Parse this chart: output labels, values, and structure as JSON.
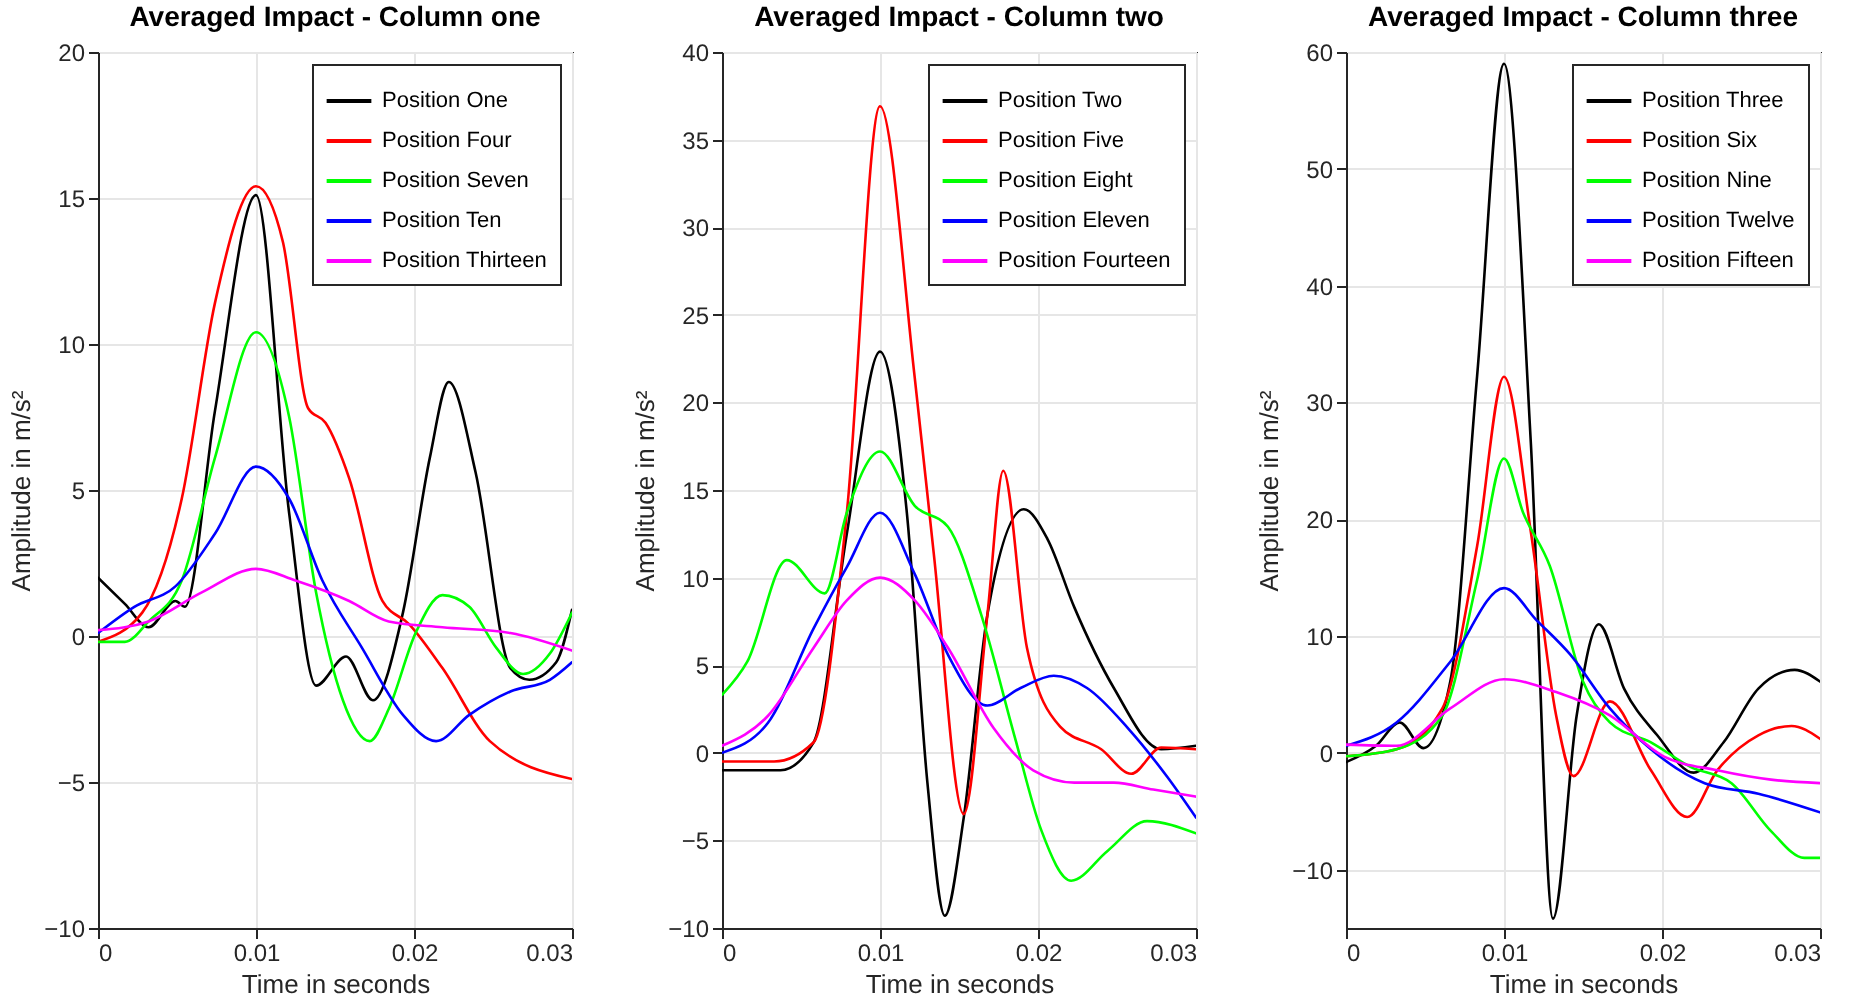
{
  "chart_data": [
    {
      "type": "line",
      "title": "Averaged Impact - Column one",
      "xlabel": "Time in seconds",
      "ylabel": "Amplitude in m/s²",
      "xlim": [
        0,
        0.03
      ],
      "xticks": [
        0,
        0.01,
        0.02,
        0.03
      ],
      "ylim": [
        -10,
        20
      ],
      "yticks": [
        -10,
        -5,
        0,
        5,
        10,
        15,
        20
      ],
      "grid": true,
      "legend": "top right",
      "line_style": "solid",
      "series": [
        {
          "name": "Position One",
          "color": "#000000",
          "x": [
            0,
            0.0017,
            0.0032,
            0.0049,
            0.0055,
            0.0074,
            0.01,
            0.0121,
            0.0138,
            0.0157,
            0.0174,
            0.0193,
            0.021,
            0.0222,
            0.0239,
            0.0261,
            0.0273,
            0.029,
            0.03
          ],
          "values": [
            2,
            1.1,
            0.3,
            1.2,
            1,
            7.7,
            15.1,
            4.2,
            -1.7,
            -0.7,
            -2.2,
            0.8,
            6.1,
            8.7,
            5.6,
            -1.1,
            -1.5,
            -0.9,
            0.9
          ]
        },
        {
          "name": "Position Four",
          "color": "#ff0000",
          "x": [
            0,
            0.0028,
            0.0053,
            0.0074,
            0.01,
            0.0117,
            0.0133,
            0.0144,
            0.0159,
            0.018,
            0.0197,
            0.0218,
            0.0248,
            0.03
          ],
          "values": [
            -0.2,
            0.8,
            4.7,
            11.4,
            15.4,
            13.5,
            7.8,
            7.3,
            5.4,
            1.2,
            0.4,
            -1.1,
            -3.6,
            -4.9
          ]
        },
        {
          "name": "Position Seven",
          "color": "#00ff00",
          "x": [
            0,
            0.0017,
            0.0032,
            0.0053,
            0.0074,
            0.01,
            0.0121,
            0.0138,
            0.0155,
            0.0172,
            0.0184,
            0.0201,
            0.0218,
            0.0235,
            0.0252,
            0.0269,
            0.0286,
            0.03
          ],
          "values": [
            -0.2,
            -0.2,
            0.5,
            1.9,
            6.1,
            10.4,
            7.5,
            1.5,
            -2.2,
            -3.6,
            -2.5,
            0.1,
            1.4,
            1,
            -0.4,
            -1.3,
            -0.6,
            0.8
          ]
        },
        {
          "name": "Position Ten",
          "color": "#0000ff",
          "x": [
            0,
            0.0023,
            0.0049,
            0.0074,
            0.01,
            0.0121,
            0.0142,
            0.0167,
            0.0193,
            0.0214,
            0.0235,
            0.0261,
            0.0286,
            0.03
          ],
          "values": [
            0.1,
            1,
            1.7,
            3.5,
            5.8,
            4.7,
            1.9,
            -0.4,
            -2.7,
            -3.6,
            -2.7,
            -1.9,
            -1.5,
            -0.9
          ]
        },
        {
          "name": "Position Thirteen",
          "color": "#ff00ff",
          "x": [
            0,
            0.0032,
            0.0066,
            0.01,
            0.0125,
            0.0159,
            0.0184,
            0.0218,
            0.0261,
            0.03
          ],
          "values": [
            0.2,
            0.5,
            1.5,
            2.3,
            1.9,
            1.2,
            0.5,
            0.3,
            0.1,
            -0.5
          ]
        }
      ]
    },
    {
      "type": "line",
      "title": "Averaged Impact - Column two",
      "xlabel": "Time in seconds",
      "ylabel": "Amplitude in m/s²",
      "xlim": [
        0,
        0.03
      ],
      "xticks": [
        0,
        0.01,
        0.02,
        0.03
      ],
      "ylim": [
        -10,
        40
      ],
      "yticks": [
        -10,
        -5,
        0,
        5,
        10,
        15,
        20,
        25,
        30,
        35,
        40
      ],
      "grid": true,
      "legend": "top right",
      "line_style": "solid",
      "series": [
        {
          "name": "Position Two",
          "color": "#000000",
          "x": [
            0,
            0.0037,
            0.0058,
            0.0079,
            0.01,
            0.0117,
            0.013,
            0.0141,
            0.0153,
            0.0168,
            0.0191,
            0.0206,
            0.0223,
            0.0248,
            0.0278,
            0.03
          ],
          "values": [
            -1,
            -1,
            0.6,
            12.5,
            22.9,
            13.7,
            -1.7,
            -9.3,
            -3.7,
            7.9,
            13.9,
            12.2,
            8.3,
            3.7,
            0.2,
            0.4
          ]
        },
        {
          "name": "Position Five",
          "color": "#ff0000",
          "x": [
            0,
            0.0033,
            0.0058,
            0.0079,
            0.01,
            0.0122,
            0.0134,
            0.0153,
            0.0168,
            0.0178,
            0.0193,
            0.0214,
            0.024,
            0.0259,
            0.0278,
            0.03
          ],
          "values": [
            -0.5,
            -0.5,
            0.6,
            13.7,
            36.9,
            21.4,
            11.4,
            -3.5,
            7.9,
            16.1,
            6,
            1.5,
            0.2,
            -1.2,
            0.3,
            0.2
          ]
        },
        {
          "name": "Position Eight",
          "color": "#00ff00",
          "x": [
            0,
            0.0016,
            0.0041,
            0.0065,
            0.0079,
            0.01,
            0.0122,
            0.0143,
            0.0164,
            0.0185,
            0.0202,
            0.0221,
            0.0244,
            0.0269,
            0.03
          ],
          "values": [
            3.3,
            5.2,
            11,
            9.1,
            13.7,
            17.2,
            14.1,
            12.9,
            7.9,
            1,
            -4.4,
            -7.3,
            -5.6,
            -3.9,
            -4.6
          ]
        },
        {
          "name": "Position Eleven",
          "color": "#0000ff",
          "x": [
            0,
            0.0029,
            0.0058,
            0.0079,
            0.01,
            0.0122,
            0.0143,
            0.0168,
            0.0189,
            0.021,
            0.0231,
            0.0257,
            0.0282,
            0.03
          ],
          "values": [
            0,
            1.7,
            7.1,
            10.6,
            13.7,
            10.2,
            5.6,
            2.7,
            3.7,
            4.4,
            3.7,
            1.4,
            -1.4,
            -3.7
          ]
        },
        {
          "name": "Position Fourteen",
          "color": "#ff00ff",
          "x": [
            0,
            0.0029,
            0.0058,
            0.0079,
            0.01,
            0.0122,
            0.0143,
            0.0172,
            0.0197,
            0.0223,
            0.0248,
            0.0273,
            0.03
          ],
          "values": [
            0.4,
            2.1,
            6,
            8.7,
            10,
            8.7,
            6,
            1.4,
            -1,
            -1.7,
            -1.7,
            -2.1,
            -2.5
          ]
        }
      ]
    },
    {
      "type": "line",
      "title": "Averaged Impact - Column three",
      "xlabel": "Time in seconds",
      "ylabel": "Amplitude in m/s²",
      "xlim": [
        0,
        0.03
      ],
      "xticks": [
        0,
        0.01,
        0.02,
        0.03
      ],
      "ylim": [
        -15,
        60
      ],
      "yticks": [
        -10,
        0,
        10,
        20,
        30,
        40,
        50,
        60
      ],
      "grid": true,
      "legend": "top right",
      "line_style": "solid",
      "series": [
        {
          "name": "Position Three",
          "color": "#000000",
          "x": [
            0,
            0.0019,
            0.0034,
            0.0049,
            0.0066,
            0.0083,
            0.01,
            0.0117,
            0.0131,
            0.0146,
            0.016,
            0.0176,
            0.0197,
            0.022,
            0.0239,
            0.0261,
            0.0284,
            0.03
          ],
          "values": [
            -0.8,
            0.6,
            2.6,
            0.4,
            6.1,
            32.3,
            59,
            26.5,
            -14.2,
            3.2,
            11,
            5.5,
            1.5,
            -1.7,
            0.9,
            5.5,
            7.1,
            6.1
          ]
        },
        {
          "name": "Position Six",
          "color": "#ff0000",
          "x": [
            0,
            0.0032,
            0.0061,
            0.0083,
            0.01,
            0.0117,
            0.0133,
            0.0144,
            0.0167,
            0.0193,
            0.0216,
            0.0235,
            0.0261,
            0.0282,
            0.03
          ],
          "values": [
            -0.3,
            0.3,
            3.8,
            17.7,
            32.2,
            18.9,
            3.2,
            -2,
            4.4,
            -1.5,
            -5.5,
            -1.5,
            1.5,
            2.3,
            1.2
          ]
        },
        {
          "name": "Position Nine",
          "color": "#00ff00",
          "x": [
            0,
            0.0032,
            0.0061,
            0.0083,
            0.01,
            0.0112,
            0.0129,
            0.015,
            0.0167,
            0.0193,
            0.0218,
            0.0244,
            0.0269,
            0.029,
            0.03
          ],
          "values": [
            -0.3,
            0.3,
            3.2,
            14.8,
            25.2,
            20.6,
            16,
            6.1,
            2.6,
            0.9,
            -1.2,
            -2.6,
            -6.7,
            -9,
            -9
          ]
        },
        {
          "name": "Position Twelve",
          "color": "#0000ff",
          "x": [
            0,
            0.0032,
            0.0066,
            0.01,
            0.0121,
            0.0142,
            0.0167,
            0.0193,
            0.0227,
            0.0261,
            0.03
          ],
          "values": [
            0.6,
            2.6,
            7.8,
            14.1,
            11.3,
            8.4,
            3.8,
            0.3,
            -2.6,
            -3.5,
            -5.1
          ]
        },
        {
          "name": "Position Fifteen",
          "color": "#ff00ff",
          "x": [
            0,
            0.0032,
            0.0066,
            0.01,
            0.0133,
            0.0167,
            0.0201,
            0.0235,
            0.0269,
            0.03
          ],
          "values": [
            0.7,
            0.6,
            3.8,
            6.3,
            5.2,
            3.2,
            -0.3,
            -1.5,
            -2.3,
            -2.6
          ]
        }
      ]
    }
  ]
}
